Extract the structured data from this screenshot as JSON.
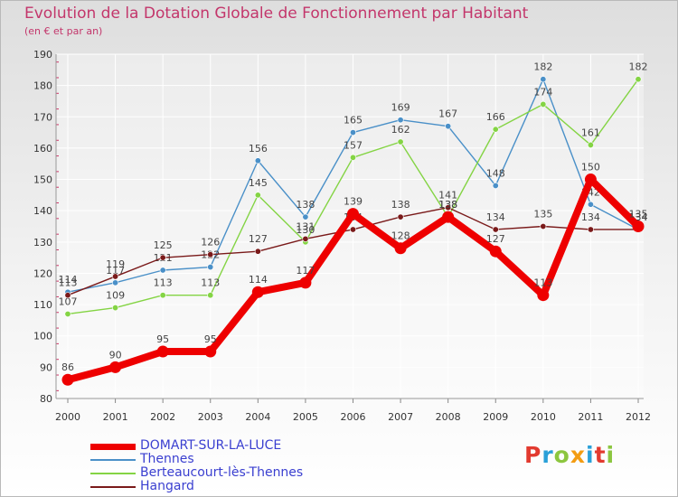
{
  "title": "Evolution de la Dotation Globale de Fonctionnement par Habitant",
  "subtitle": "(en € et par an)",
  "brand": {
    "name": "Proxiti",
    "letters": [
      {
        "ch": "P",
        "color": "#e23a2f"
      },
      {
        "ch": "r",
        "color": "#2aa0d8"
      },
      {
        "ch": "o",
        "color": "#8cc63f"
      },
      {
        "ch": "x",
        "color": "#f39c12"
      },
      {
        "ch": "i",
        "color": "#2aa0d8"
      },
      {
        "ch": "t",
        "color": "#e23a2f"
      },
      {
        "ch": "i",
        "color": "#8cc63f"
      }
    ]
  },
  "chart_data": {
    "type": "line",
    "title": "Evolution de la Dotation Globale de Fonctionnement par Habitant",
    "ylabel": "(en € et par an)",
    "xlabel": "",
    "categories": [
      "2000",
      "2001",
      "2002",
      "2003",
      "2004",
      "2005",
      "2006",
      "2007",
      "2008",
      "2009",
      "2010",
      "2011",
      "2012"
    ],
    "ylim": [
      80,
      190
    ],
    "yticks": [
      80,
      90,
      100,
      110,
      120,
      130,
      140,
      150,
      160,
      170,
      180,
      190
    ],
    "grid": true,
    "legend_position": "bottom-left",
    "series": [
      {
        "name": "DOMART-SUR-LA-LUCE",
        "color": "#ee0000",
        "emphasis": true,
        "values": [
          86,
          90,
          95,
          95,
          114,
          117,
          139,
          128,
          138,
          127,
          113,
          150,
          135
        ]
      },
      {
        "name": "Thennes",
        "color": "#4a90c8",
        "values": [
          114,
          117,
          121,
          122,
          156,
          138,
          165,
          169,
          167,
          148,
          182,
          142,
          134
        ]
      },
      {
        "name": "Berteaucourt-lès-Thennes",
        "color": "#84d444",
        "values": [
          107,
          109,
          113,
          113,
          145,
          130,
          157,
          162,
          138,
          166,
          174,
          161,
          182
        ]
      },
      {
        "name": "Hangard",
        "color": "#7a1a1a",
        "values": [
          113,
          119,
          125,
          126,
          127,
          131,
          134,
          138,
          141,
          134,
          135,
          134,
          134
        ]
      }
    ]
  }
}
